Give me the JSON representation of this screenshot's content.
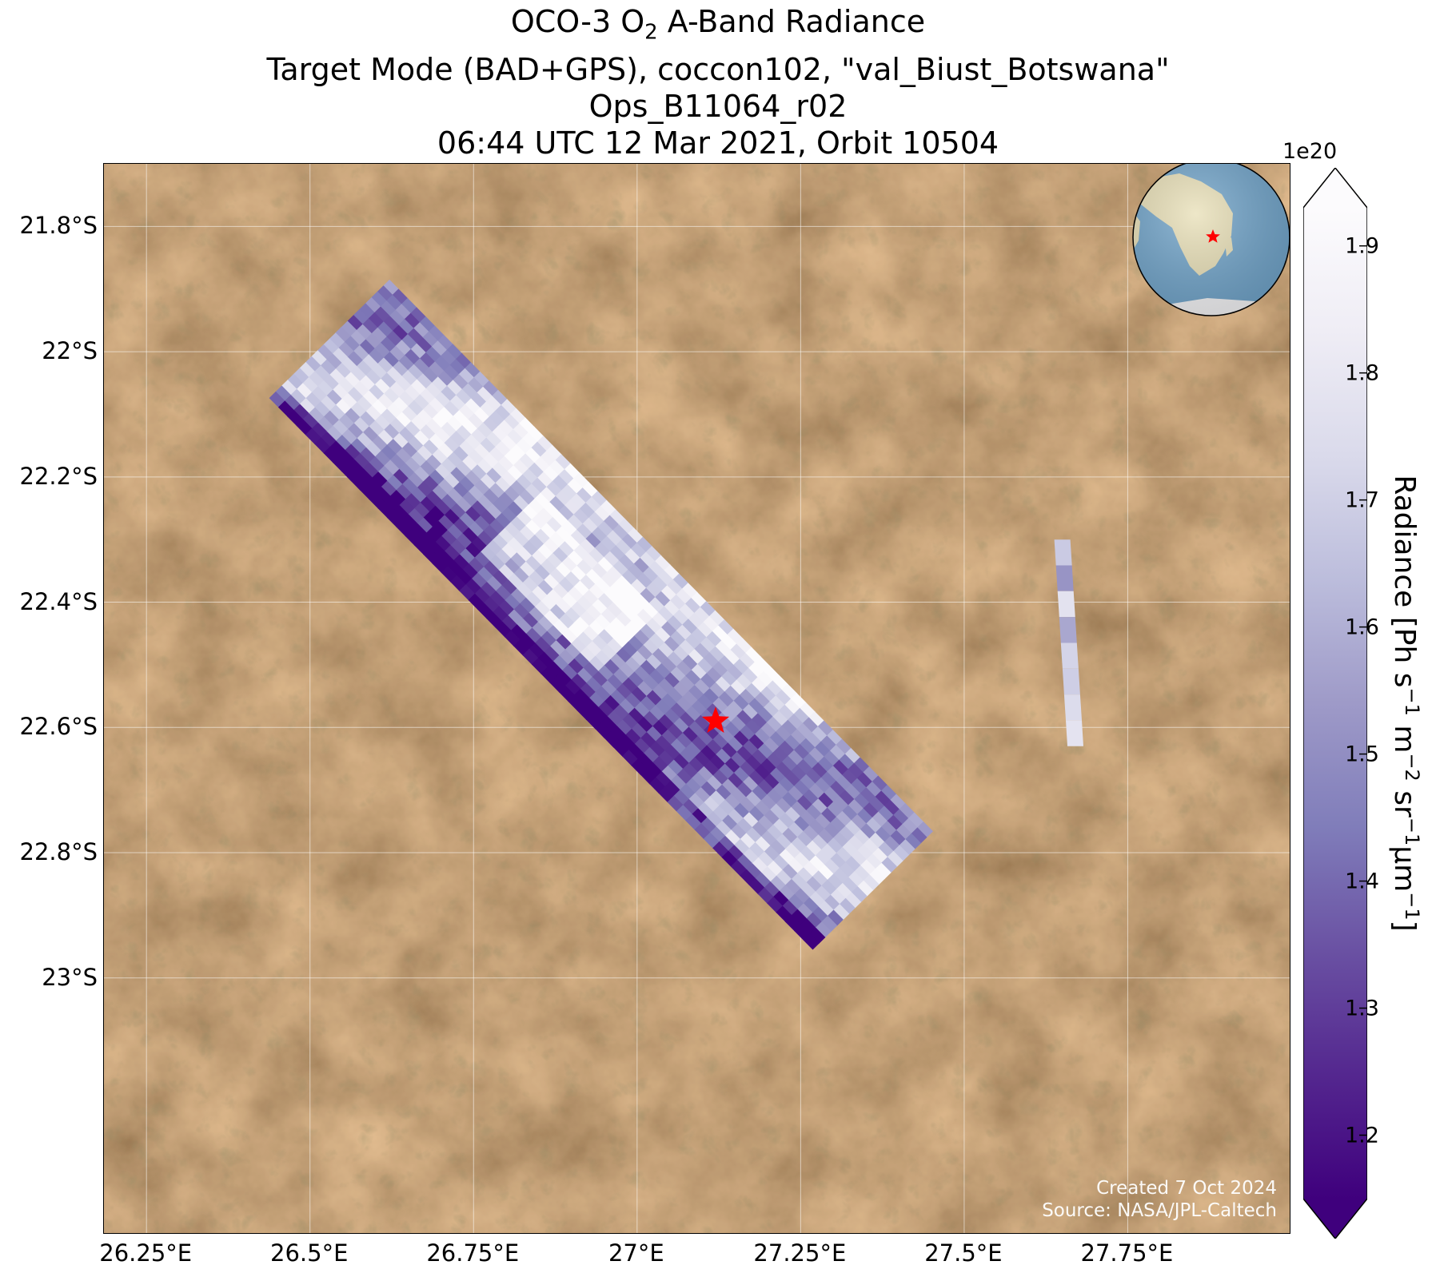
{
  "title": {
    "line1_prefix": "OCO-3 O",
    "line1_sub": "2",
    "line1_suffix": " A-Band Radiance",
    "line2": "Target Mode (BAD+GPS), coccon102, \"val_Biust_Botswana\"",
    "line3": "Ops_B11064_r02",
    "line4": "06:44 UTC 12 Mar 2021, Orbit 10504"
  },
  "map": {
    "lon_range": [
      26.185,
      28.0
    ],
    "lat_range": [
      -23.41,
      -21.7
    ],
    "lat_ticks": [
      {
        "value": -21.8,
        "label": "21.8°S"
      },
      {
        "value": -22.0,
        "label": "22°S"
      },
      {
        "value": -22.2,
        "label": "22.2°S"
      },
      {
        "value": -22.4,
        "label": "22.4°S"
      },
      {
        "value": -22.6,
        "label": "22.6°S"
      },
      {
        "value": -22.8,
        "label": "22.8°S"
      },
      {
        "value": -23.0,
        "label": "23°S"
      }
    ],
    "lon_ticks": [
      {
        "value": 26.25,
        "label": "26.25°E"
      },
      {
        "value": 26.5,
        "label": "26.5°E"
      },
      {
        "value": 26.75,
        "label": "26.75°E"
      },
      {
        "value": 27.0,
        "label": "27°E"
      },
      {
        "value": 27.25,
        "label": "27.25°E"
      },
      {
        "value": 27.5,
        "label": "27.5°E"
      },
      {
        "value": 27.75,
        "label": "27.75°E"
      }
    ],
    "target_marker": {
      "lon": 27.12,
      "lat": -22.59,
      "symbol": "star",
      "color": "#ff0000"
    },
    "main_swath": {
      "start": {
        "lon": 26.53,
        "lat": -21.98
      },
      "end": {
        "lon": 27.36,
        "lat": -22.86
      },
      "value_range": [
        1.15,
        1.93
      ]
    },
    "small_swath": {
      "start": {
        "lon": 27.65,
        "lat": -22.3
      },
      "end": {
        "lon": 27.67,
        "lat": -22.63
      }
    },
    "grid": true,
    "background": "satellite imagery"
  },
  "credit": {
    "line1": "Created 7 Oct 2024",
    "line2": "Source: NASA/JPL-Caltech"
  },
  "colorbar": {
    "colormap": "Purples_r",
    "min": 1.15,
    "max": 1.93,
    "extend": "both",
    "exponent_label": "1e20",
    "ticks": [
      {
        "value": 1.2,
        "label": "1.2"
      },
      {
        "value": 1.3,
        "label": "1.3"
      },
      {
        "value": 1.4,
        "label": "1.4"
      },
      {
        "value": 1.5,
        "label": "1.5"
      },
      {
        "value": 1.6,
        "label": "1.6"
      },
      {
        "value": 1.7,
        "label": "1.7"
      },
      {
        "value": 1.8,
        "label": "1.8"
      },
      {
        "value": 1.9,
        "label": "1.9"
      }
    ],
    "label": {
      "p1": "Radiance [Ph s",
      "s1": "−1",
      "p2": " m",
      "s2": "−2",
      "p3": " sr",
      "s3": "−1",
      "p4": "μm",
      "s4": "−1",
      "p5": "]"
    },
    "colors": [
      "#3f007d",
      "#54278f",
      "#6a51a3",
      "#807dba",
      "#9e9ac8",
      "#bcbddc",
      "#dadaeb",
      "#efedf5",
      "#fcfbfd"
    ]
  },
  "inset_globe": {
    "marker_color": "#ff0000",
    "ocean_color": "#6fa3c9",
    "land_color": "#e8dfb6"
  }
}
